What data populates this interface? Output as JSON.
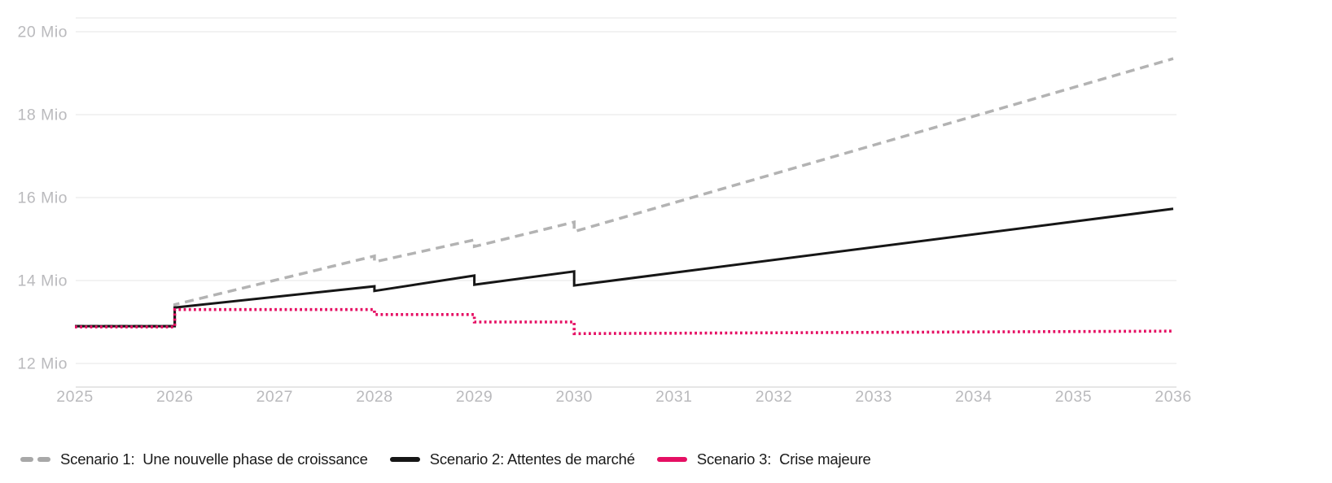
{
  "chart_data": {
    "type": "line",
    "title": "",
    "xlabel": "",
    "ylabel": "",
    "unit": "Mio",
    "grid": true,
    "legend_position": "bottom-left",
    "x_axis": {
      "ticks": [
        2025,
        2026,
        2027,
        2028,
        2029,
        2030,
        2031,
        2032,
        2033,
        2034,
        2035,
        2036
      ],
      "range": [
        2025,
        2036
      ]
    },
    "y_axis": {
      "tick_values": [
        12,
        14,
        16,
        18,
        20
      ],
      "tick_labels": [
        "12 Mio",
        "14 Mio",
        "16 Mio",
        "18 Mio",
        "20 Mio"
      ],
      "range": [
        11.43,
        20.33
      ]
    },
    "series": [
      {
        "name": "Scenario 1:  Une nouvelle phase de croissance",
        "color": "#b3b3b3",
        "style": "dashed",
        "points": [
          [
            2025,
            12.9
          ],
          [
            2026,
            12.9
          ],
          [
            2026,
            13.42
          ],
          [
            2028,
            14.59
          ],
          [
            2028,
            14.45
          ],
          [
            2029,
            14.98
          ],
          [
            2029,
            14.82
          ],
          [
            2030,
            15.41
          ],
          [
            2030,
            15.18
          ],
          [
            2036,
            19.35
          ]
        ]
      },
      {
        "name": "Scenario 2: Attentes de marché",
        "color": "#161616",
        "style": "solid",
        "points": [
          [
            2025,
            12.9
          ],
          [
            2026,
            12.9
          ],
          [
            2026,
            13.35
          ],
          [
            2028,
            13.86
          ],
          [
            2028,
            13.75
          ],
          [
            2029,
            14.12
          ],
          [
            2029,
            13.9
          ],
          [
            2030,
            14.22
          ],
          [
            2030,
            13.88
          ],
          [
            2036,
            15.73
          ]
        ]
      },
      {
        "name": "Scenario 3:  Crise majeure",
        "color": "#e50f63",
        "style": "dotted",
        "points": [
          [
            2025,
            12.88
          ],
          [
            2026,
            12.88
          ],
          [
            2026,
            13.3
          ],
          [
            2028,
            13.3
          ],
          [
            2028,
            13.18
          ],
          [
            2029,
            13.18
          ],
          [
            2029,
            13.0
          ],
          [
            2030,
            13.0
          ],
          [
            2030,
            12.72
          ],
          [
            2036,
            12.78
          ]
        ]
      }
    ],
    "axis_text_color": "#bababd",
    "gridline_color": "#e9e9e9",
    "baseline_color": "#d6d6d6"
  }
}
